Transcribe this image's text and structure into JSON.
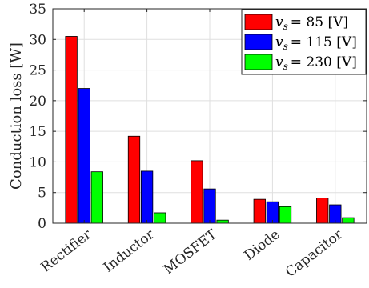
{
  "chart_data": {
    "type": "bar",
    "ylabel": "Conduction loss [W]",
    "xlabel": "",
    "ylim": [
      0,
      35
    ],
    "yticks": [
      0,
      5,
      10,
      15,
      20,
      25,
      30,
      35
    ],
    "grid": true,
    "legend_position": "top-right",
    "categories": [
      "Rectifier",
      "Inductor",
      "MOSFET",
      "Diode",
      "Capacitor"
    ],
    "series": [
      {
        "name": "v_s = 85 [V]",
        "legend_var": "v",
        "legend_sub": "s",
        "legend_rest": "= 85 [V]",
        "color": "#ff0000",
        "values": [
          30.5,
          14.2,
          10.2,
          3.9,
          4.1
        ]
      },
      {
        "name": "v_s = 115 [V]",
        "legend_var": "v",
        "legend_sub": "s",
        "legend_rest": "= 115 [V]",
        "color": "#0000ff",
        "values": [
          22.0,
          8.5,
          5.6,
          3.5,
          3.0
        ]
      },
      {
        "name": "v_s = 230 [V]",
        "legend_var": "v",
        "legend_sub": "s",
        "legend_rest": "= 230 [V]",
        "color": "#00ff00",
        "values": [
          8.4,
          1.7,
          0.5,
          2.7,
          0.9
        ]
      }
    ]
  }
}
